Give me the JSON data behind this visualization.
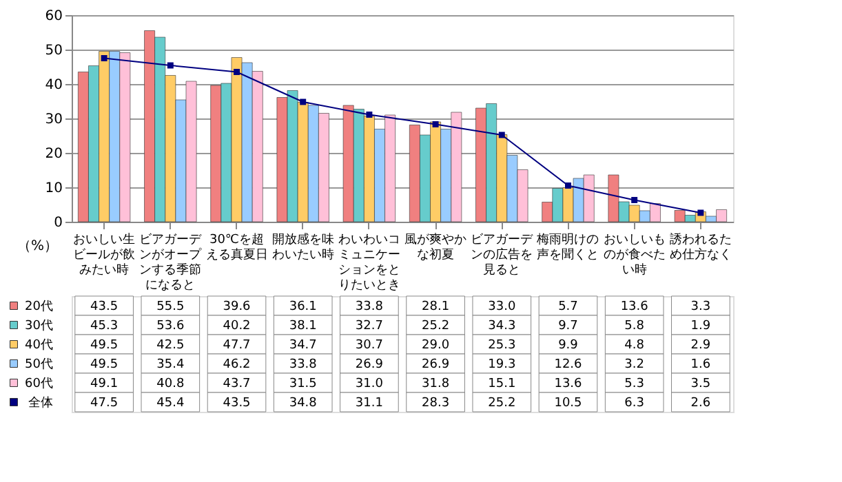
{
  "chart_data": {
    "type": "bar",
    "ylabel": "（%）",
    "categories": [
      "おいしい生ビールが飲みたい時",
      "ビアガーデンがオープンする季節になると",
      "30℃を超える真夏日",
      "開放感を味わいたい時",
      "わいわいコミュニケーションをとりたいとき",
      "風が爽やかな初夏",
      "ビアガーデンの広告を見ると",
      "梅雨明けの声を聞くと",
      "おいしいものが食べたい時",
      "誘われるため仕方なく"
    ],
    "series": [
      {
        "name": "20代",
        "color": "#f08080",
        "values": [
          43.5,
          55.5,
          39.6,
          36.1,
          33.8,
          28.1,
          33.0,
          5.7,
          13.6,
          3.3
        ],
        "value_labels": [
          "43.5",
          "55.5",
          "39.6",
          "36.1",
          "33.8",
          "28.1",
          "33.0",
          "5.7",
          "13.6",
          "3.3"
        ]
      },
      {
        "name": "30代",
        "color": "#66cccc",
        "values": [
          45.3,
          53.6,
          40.2,
          38.1,
          32.7,
          25.2,
          34.3,
          9.7,
          5.8,
          1.9
        ],
        "value_labels": [
          "45.3",
          "53.6",
          "40.2",
          "38.1",
          "32.7",
          "25.2",
          "34.3",
          "9.7",
          "5.8",
          "1.9"
        ]
      },
      {
        "name": "40代",
        "color": "#ffcc66",
        "values": [
          49.5,
          42.5,
          47.7,
          34.7,
          30.7,
          29.0,
          25.3,
          9.9,
          4.8,
          2.9
        ],
        "value_labels": [
          "49.5",
          "42.5",
          "47.7",
          "34.7",
          "30.7",
          "29.0",
          "25.3",
          "9.9",
          "4.8",
          "2.9"
        ]
      },
      {
        "name": "50代",
        "color": "#99ccff",
        "values": [
          49.5,
          35.4,
          46.2,
          33.8,
          26.9,
          26.9,
          19.3,
          12.6,
          3.2,
          1.6
        ],
        "value_labels": [
          "49.5",
          "35.4",
          "46.2",
          "33.8",
          "26.9",
          "26.9",
          "19.3",
          "12.6",
          "3.2",
          "1.6"
        ]
      },
      {
        "name": "60代",
        "color": "#ffc0d8",
        "values": [
          49.1,
          40.8,
          43.7,
          31.5,
          31.0,
          31.8,
          15.1,
          13.6,
          5.3,
          3.5
        ],
        "value_labels": [
          "49.1",
          "40.8",
          "43.7",
          "31.5",
          "31.0",
          "31.8",
          "15.1",
          "13.6",
          "5.3",
          "3.5"
        ]
      },
      {
        "name": "全体",
        "type": "line",
        "color": "#000080",
        "marker": "square",
        "values": [
          47.5,
          45.4,
          43.5,
          34.8,
          31.1,
          28.3,
          25.2,
          10.5,
          6.3,
          2.6
        ],
        "value_labels": [
          "47.5",
          "45.4",
          "43.5",
          "34.8",
          "31.1",
          "28.3",
          "25.2",
          "10.5",
          "6.3",
          "2.6"
        ]
      }
    ],
    "ylim": [
      0,
      60
    ],
    "yticks": [
      0,
      10,
      20,
      30,
      40,
      50,
      60
    ],
    "grid": "y",
    "legend": "bottom left"
  }
}
